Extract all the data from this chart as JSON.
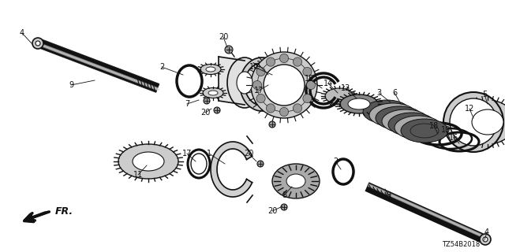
{
  "background_color": "#ffffff",
  "diagram_id": "TZ54B2018",
  "fig_width": 6.4,
  "fig_height": 3.2,
  "dpi": 100
}
